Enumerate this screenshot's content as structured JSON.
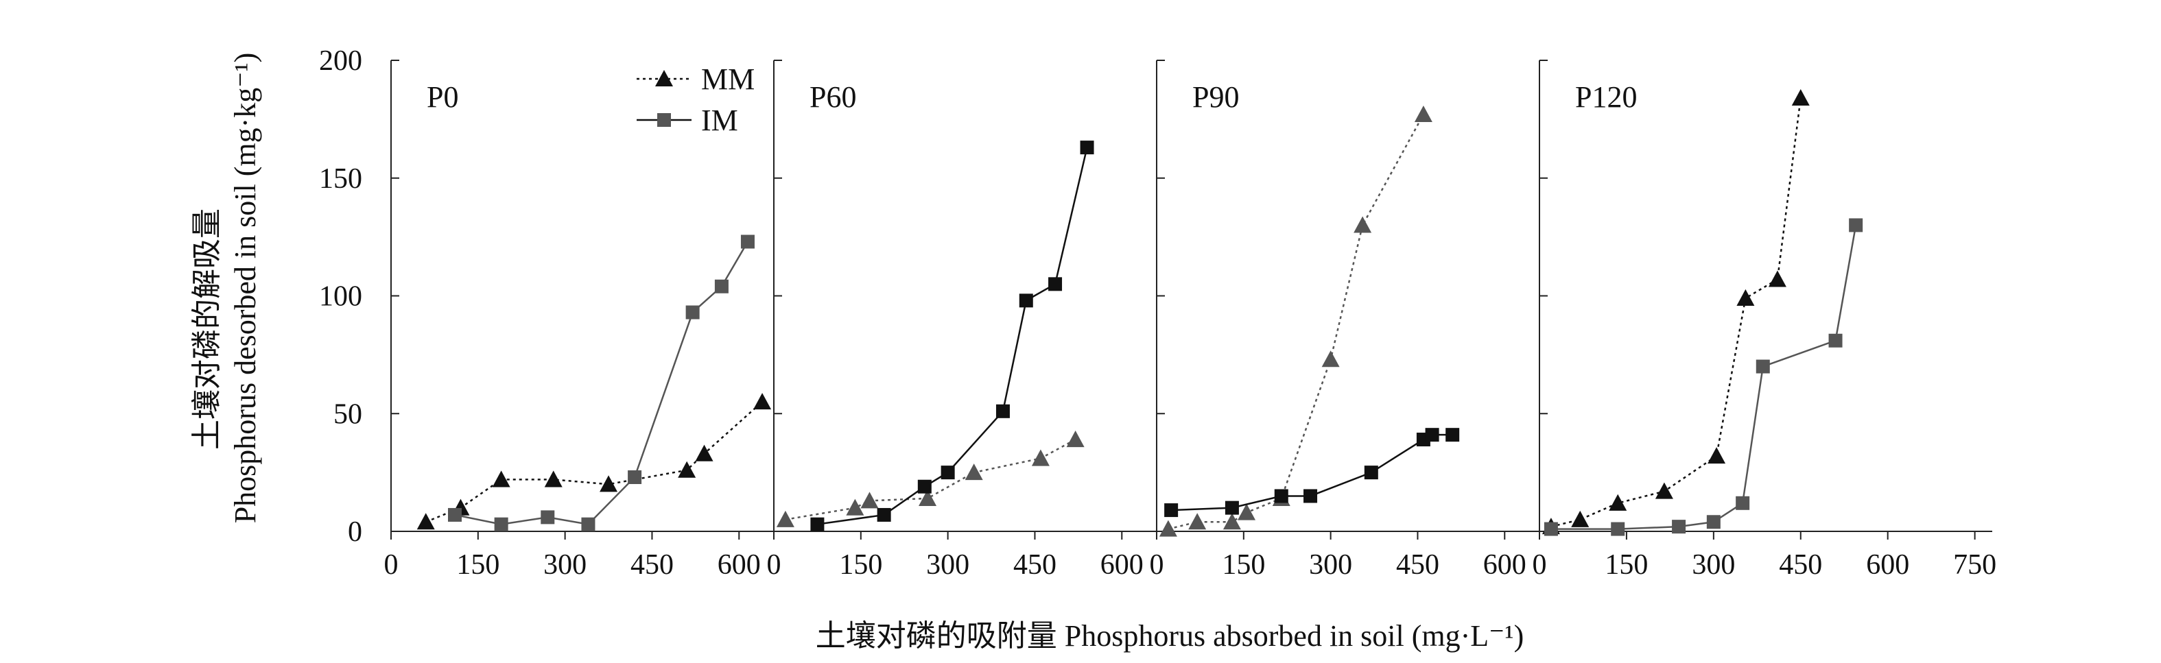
{
  "chart_data": {
    "type": "line",
    "ylabel_lines": [
      "土壤对磷的解吸量",
      "Phosphorus desorbed in soil (mg·kg⁻¹)"
    ],
    "xlabel": "土壤对磷的吸附量 Phosphorus absorbed in soil (mg·L⁻¹)",
    "ylim": [
      0,
      200
    ],
    "yticks": [
      "0",
      "50",
      "100",
      "150",
      "200"
    ],
    "legend": {
      "location": "top-right of first panel",
      "entries": [
        {
          "name": "MM",
          "marker": "triangle",
          "line": "dotted"
        },
        {
          "name": "IM",
          "marker": "square",
          "line": "solid"
        }
      ]
    },
    "colors": {
      "black": "#111111",
      "gray": "#555555",
      "axis": "#222222"
    },
    "panels": [
      {
        "title": "P0",
        "xlim": [
          0,
          660
        ],
        "xticks": [
          "0",
          "150",
          "300",
          "450",
          "600"
        ],
        "xtick_values": [
          0,
          150,
          300,
          450,
          600
        ],
        "series": [
          {
            "name": "MM",
            "marker": "triangle",
            "line": "dotted",
            "color": "#111111",
            "x": [
              60,
              120,
              190,
              280,
              375,
              510,
              540,
              640
            ],
            "y": [
              4,
              10,
              22,
              22,
              20,
              26,
              33,
              55
            ]
          },
          {
            "name": "IM",
            "marker": "square",
            "line": "solid",
            "color": "#555555",
            "x": [
              110,
              190,
              270,
              340,
              420,
              520,
              570,
              615
            ],
            "y": [
              7,
              3,
              6,
              3,
              23,
              93,
              104,
              123
            ]
          }
        ]
      },
      {
        "title": "P60",
        "xlim": [
          0,
          660
        ],
        "xticks": [
          "0",
          "150",
          "300",
          "450",
          "600"
        ],
        "xtick_values": [
          0,
          150,
          300,
          450,
          600
        ],
        "series": [
          {
            "name": "MM",
            "marker": "triangle",
            "line": "dotted",
            "color": "#555555",
            "x": [
              20,
              140,
              165,
              265,
              345,
              460,
              520
            ],
            "y": [
              5,
              10,
              13,
              14,
              25,
              31,
              39
            ]
          },
          {
            "name": "IM",
            "marker": "square",
            "line": "solid",
            "color": "#111111",
            "x": [
              75,
              190,
              260,
              300,
              395,
              435,
              485,
              540
            ],
            "y": [
              3,
              7,
              19,
              25,
              51,
              98,
              105,
              163
            ]
          }
        ]
      },
      {
        "title": "P90",
        "xlim": [
          0,
          660
        ],
        "xticks": [
          "0",
          "150",
          "300",
          "450",
          "600"
        ],
        "xtick_values": [
          0,
          150,
          300,
          450,
          600
        ],
        "series": [
          {
            "name": "MM",
            "marker": "triangle",
            "line": "dotted",
            "color": "#555555",
            "x": [
              20,
              70,
              130,
              155,
              215,
              300,
              355,
              460
            ],
            "y": [
              1,
              4,
              4,
              8,
              14,
              73,
              130,
              177
            ]
          },
          {
            "name": "IM",
            "marker": "square",
            "line": "solid",
            "color": "#111111",
            "x": [
              25,
              130,
              215,
              265,
              370,
              460,
              475,
              510
            ],
            "y": [
              9,
              10,
              15,
              15,
              25,
              39,
              41,
              41
            ]
          }
        ]
      },
      {
        "title": "P120",
        "xlim": [
          0,
          780
        ],
        "xticks": [
          "0",
          "150",
          "300",
          "450",
          "600",
          "750"
        ],
        "xtick_values": [
          0,
          150,
          300,
          450,
          600,
          750
        ],
        "series": [
          {
            "name": "MM",
            "marker": "triangle",
            "line": "dotted",
            "color": "#111111",
            "x": [
              20,
              70,
              135,
              215,
              305,
              355,
              410,
              450
            ],
            "y": [
              2,
              5,
              12,
              17,
              32,
              99,
              107,
              184
            ]
          },
          {
            "name": "IM",
            "marker": "square",
            "line": "solid",
            "color": "#555555",
            "x": [
              20,
              135,
              240,
              300,
              350,
              385,
              510,
              545
            ],
            "y": [
              1,
              1,
              2,
              4,
              12,
              70,
              81,
              130
            ]
          }
        ]
      }
    ]
  }
}
